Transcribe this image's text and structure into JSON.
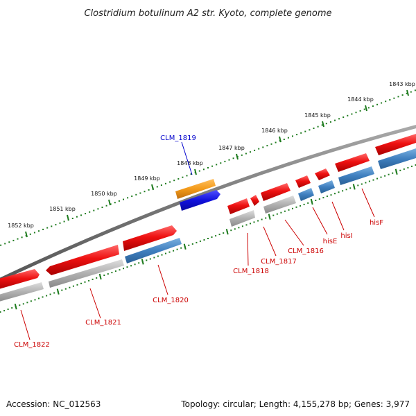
{
  "title": "Clostridium botulinum A2 str. Kyoto, complete genome",
  "footer": {
    "accession": "Accession: NC_012563",
    "topology": "Topology: circular; Length: 4,155,278 bp; Genes: 3,977"
  },
  "ruler": {
    "ticks": [
      {
        "label": "1843 kbp"
      },
      {
        "label": "1844 kbp"
      },
      {
        "label": "1845 kbp"
      },
      {
        "label": "1846 kbp"
      },
      {
        "label": "1847 kbp"
      },
      {
        "label": "1848 kbp"
      },
      {
        "label": "1849 kbp"
      },
      {
        "label": "1850 kbp"
      },
      {
        "label": "1851 kbp"
      },
      {
        "label": "1852 kbp"
      }
    ]
  },
  "genes": [
    {
      "name": "CLM_1822"
    },
    {
      "name": "CLM_1821"
    },
    {
      "name": "CLM_1820"
    },
    {
      "name": "CLM_1819"
    },
    {
      "name": "CLM_1818"
    },
    {
      "name": "CLM_1817"
    },
    {
      "name": "CLM_1816"
    },
    {
      "name": "hisE"
    },
    {
      "name": "hisI"
    },
    {
      "name": "hisF"
    }
  ],
  "colors": {
    "backbone": "#777777",
    "forward_cds": "#ee1111",
    "gene_blue": "#3f7fbf",
    "gene_gray": "#b0b0b0",
    "orange_feature": "#f39a1a",
    "blue_feature": "#1111dd",
    "tick": "#1e7b1e",
    "label_red": "#cc0000",
    "label_blue": "#0000cc"
  }
}
